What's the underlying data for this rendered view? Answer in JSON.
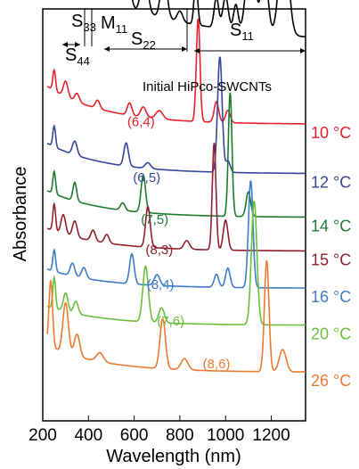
{
  "chart_data": {
    "type": "line",
    "title": "",
    "xlabel": "Wavelength (nm)",
    "ylabel": "Absorbance",
    "xlim": [
      200,
      1350
    ],
    "x_ticks": [
      "200",
      "400",
      "600",
      "800",
      "1000",
      "1200"
    ],
    "x_tick_values": [
      200,
      400,
      600,
      800,
      1000,
      1200
    ],
    "y_ticks": "none",
    "grid": false,
    "region_annotations": [
      {
        "main": "S",
        "sub": "33"
      },
      {
        "main": "S",
        "sub": "44"
      },
      {
        "main": "M",
        "sub": "11"
      },
      {
        "main": "S",
        "sub": "22"
      },
      {
        "main": "S",
        "sub": "11"
      }
    ],
    "initial_label": "Initial HiPco-SWCNTs",
    "series": [
      {
        "name": "Initial HiPco-SWCNTs",
        "temperature": "",
        "chirality": "",
        "color": "#000000",
        "baseline": 0.97,
        "scale": 0.52,
        "peak_pos": [],
        "decay": 0.02,
        "peaks": [
          [
            255,
            0.12,
            10
          ],
          [
            330,
            0.1,
            18
          ],
          [
            395,
            0.2,
            18
          ],
          [
            440,
            0.05,
            10
          ],
          [
            530,
            0.06,
            15
          ],
          [
            575,
            0.12,
            12
          ],
          [
            645,
            0.18,
            15
          ],
          [
            730,
            0.2,
            14
          ],
          [
            800,
            0.05,
            12
          ],
          [
            870,
            0.2,
            8
          ],
          [
            960,
            0.14,
            10
          ],
          [
            1000,
            0.15,
            12
          ],
          [
            1045,
            0.12,
            10
          ],
          [
            1110,
            0.45,
            18
          ],
          [
            1170,
            0.3,
            15
          ],
          [
            1255,
            0.48,
            20
          ]
        ],
        "extra": "initial"
      },
      {
        "name": "10 °C",
        "temperature": "10 °C",
        "chirality": "(6,4)",
        "color": "#e8212d",
        "baseline": 0.72,
        "scale": 0.25,
        "peak_pos": [
          570,
          0.715
        ],
        "decay": 0.1,
        "peaks": [
          [
            250,
            0.2,
            6
          ],
          [
            300,
            0.15,
            10
          ],
          [
            350,
            0.08,
            10
          ],
          [
            440,
            0.08,
            10
          ],
          [
            580,
            0.12,
            10
          ],
          [
            640,
            0.1,
            12
          ],
          [
            710,
            0.08,
            15
          ],
          [
            880,
            1.0,
            8
          ],
          [
            960,
            0.2,
            10
          ],
          [
            1010,
            0.12,
            10
          ]
        ]
      },
      {
        "name": "12 °C",
        "temperature": "12 °C",
        "chirality": "(6,5)",
        "color": "#33479b",
        "baseline": 0.6,
        "scale": 0.28,
        "peak_pos": [
          595,
          0.58
        ],
        "decay": 0.08,
        "peaks": [
          [
            250,
            0.18,
            6
          ],
          [
            340,
            0.12,
            10
          ],
          [
            565,
            0.2,
            10
          ],
          [
            660,
            0.05,
            12
          ],
          [
            975,
            1.0,
            10
          ],
          [
            1010,
            0.1,
            10
          ]
        ]
      },
      {
        "name": "14 °C",
        "temperature": "14 °C",
        "chirality": "(7,5)",
        "color": "#1e7a30",
        "baseline": 0.494,
        "scale": 0.3,
        "peak_pos": [
          630,
          0.478
        ],
        "decay": 0.07,
        "peaks": [
          [
            250,
            0.18,
            6
          ],
          [
            340,
            0.15,
            8
          ],
          [
            550,
            0.06,
            10
          ],
          [
            640,
            0.3,
            10
          ],
          [
            1020,
            1.0,
            8
          ],
          [
            1100,
            0.2,
            10
          ]
        ]
      },
      {
        "name": "15 °C",
        "temperature": "15 °C",
        "chirality": "(8,3)",
        "color": "#8f1f2e",
        "baseline": 0.412,
        "scale": 0.26,
        "peak_pos": [
          650,
          0.405
        ],
        "decay": 0.06,
        "peaks": [
          [
            250,
            0.25,
            6
          ],
          [
            290,
            0.18,
            10
          ],
          [
            340,
            0.15,
            10
          ],
          [
            420,
            0.1,
            10
          ],
          [
            480,
            0.08,
            10
          ],
          [
            660,
            0.38,
            10
          ],
          [
            830,
            0.08,
            12
          ],
          [
            950,
            1.0,
            8
          ],
          [
            1000,
            0.28,
            10
          ]
        ]
      },
      {
        "name": "16 °C",
        "temperature": "16 °C",
        "chirality": "(8,4)",
        "color": "#3d7cc9",
        "baseline": 0.322,
        "scale": 0.26,
        "peak_pos": [
          655,
          0.32
        ],
        "decay": 0.05,
        "peaks": [
          [
            250,
            0.2,
            6
          ],
          [
            330,
            0.12,
            10
          ],
          [
            380,
            0.1,
            10
          ],
          [
            590,
            0.28,
            10
          ],
          [
            700,
            0.1,
            12
          ],
          [
            960,
            0.12,
            10
          ],
          [
            1010,
            0.18,
            10
          ],
          [
            1110,
            1.0,
            10
          ]
        ]
      },
      {
        "name": "20 °C",
        "temperature": "20 °C",
        "chirality": "(7,6)",
        "color": "#6abf3c",
        "baseline": 0.232,
        "scale": 0.3,
        "peak_pos": [
          700,
          0.232
        ],
        "decay": 0.05,
        "peaks": [
          [
            250,
            0.25,
            6
          ],
          [
            300,
            0.15,
            10
          ],
          [
            345,
            0.1,
            10
          ],
          [
            650,
            0.45,
            12
          ],
          [
            720,
            0.12,
            12
          ],
          [
            1125,
            1.0,
            12
          ]
        ]
      },
      {
        "name": "26 °C",
        "temperature": "26 °C",
        "chirality": "(8,6)",
        "color": "#ec7a31",
        "baseline": 0.118,
        "scale": 0.27,
        "peak_pos": [
          900,
          0.128
        ],
        "decay": 0.07,
        "peaks": [
          [
            235,
            0.6,
            8
          ],
          [
            300,
            0.45,
            12
          ],
          [
            350,
            0.2,
            12
          ],
          [
            450,
            0.08,
            15
          ],
          [
            725,
            0.45,
            12
          ],
          [
            820,
            0.1,
            15
          ],
          [
            1180,
            1.0,
            10
          ],
          [
            1250,
            0.2,
            15
          ]
        ]
      }
    ]
  }
}
